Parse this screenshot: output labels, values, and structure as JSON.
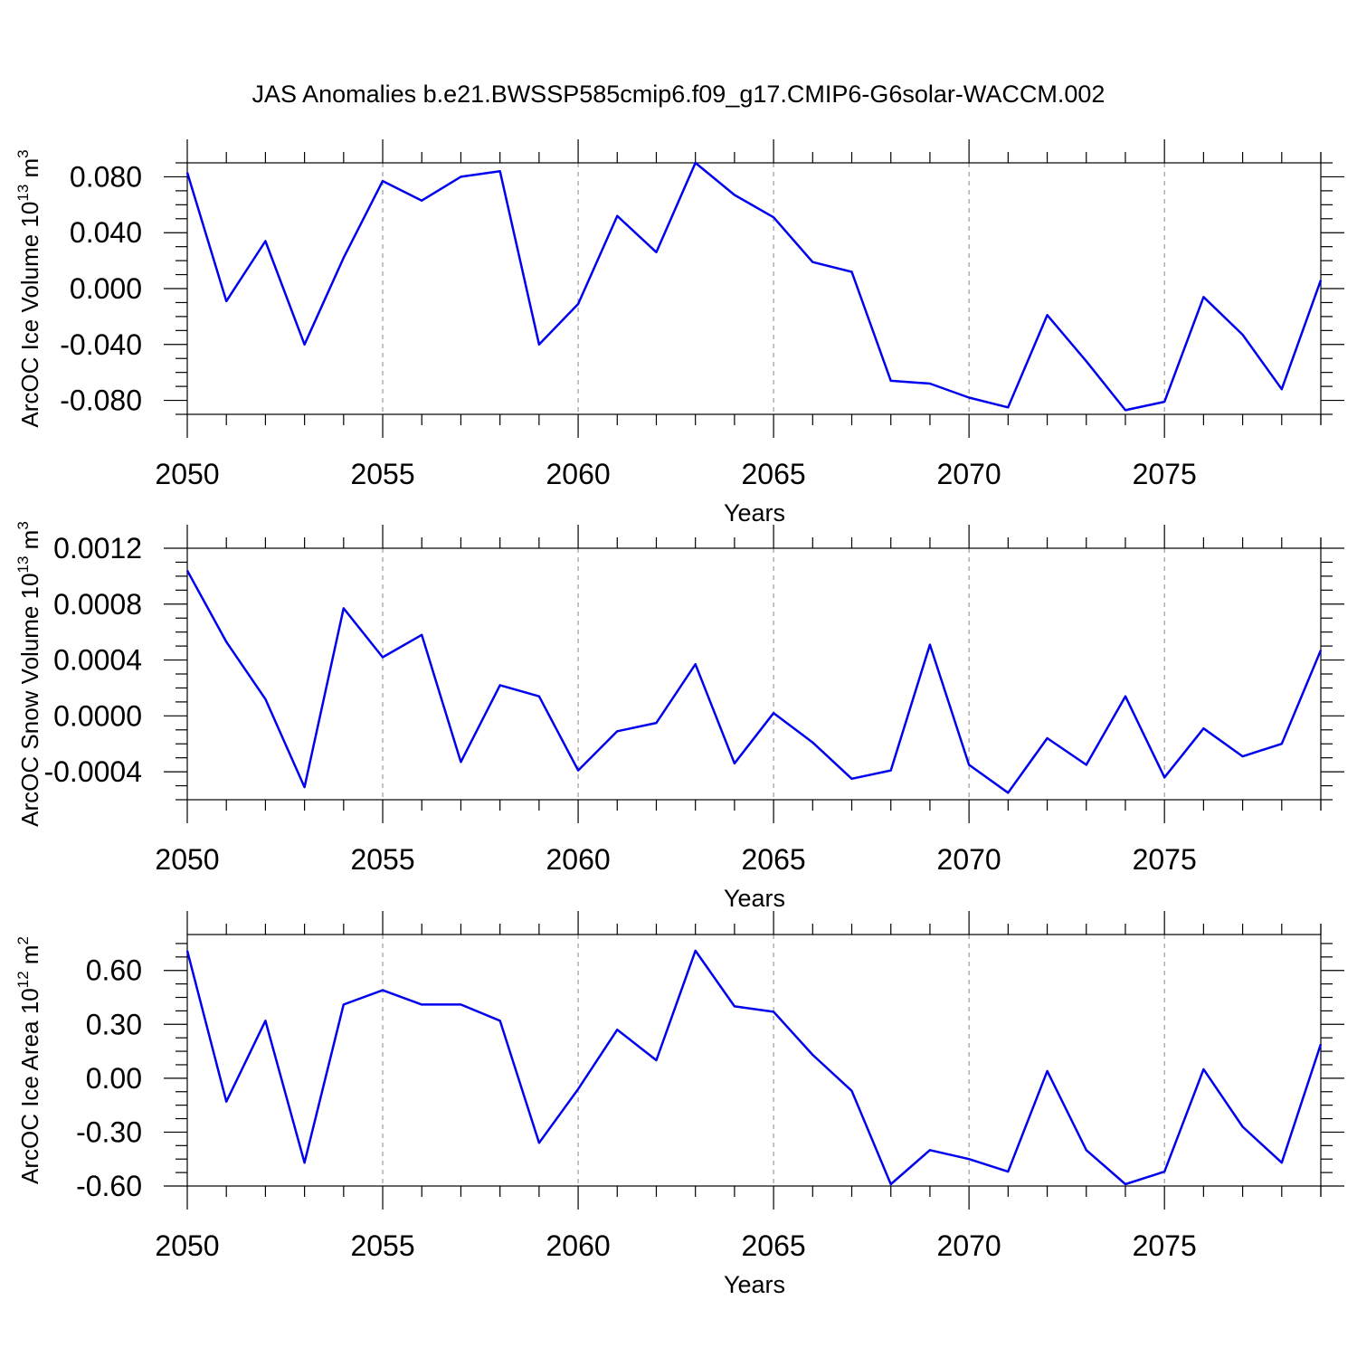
{
  "title": "JAS Anomalies b.e21.BWSSP585cmip6.f09_g17.CMIP6-G6solar-WACCM.002",
  "line_color": "#0000ee",
  "chart_data": [
    {
      "type": "line",
      "xlabel": "Years",
      "ylabel": {
        "main": "ArcOC Ice Volume 10",
        "sup": "13",
        "unit": " m",
        "unit_sup": "3"
      },
      "xlim": [
        2050,
        2079
      ],
      "ylim": [
        -0.09,
        0.09
      ],
      "xticks": [
        2050,
        2055,
        2060,
        2065,
        2070,
        2075
      ],
      "xtick_labels": [
        "2050",
        "2055",
        "2060",
        "2065",
        "2070",
        "2075"
      ],
      "yticks": [
        -0.08,
        -0.04,
        0.0,
        0.04,
        0.08
      ],
      "ytick_labels": [
        "-0.080",
        "-0.040",
        "0.000",
        "0.040",
        "0.080"
      ],
      "grid": "vertical dashed at major x ticks",
      "x": [
        2050,
        2051,
        2052,
        2053,
        2054,
        2055,
        2056,
        2057,
        2058,
        2059,
        2060,
        2061,
        2062,
        2063,
        2064,
        2065,
        2066,
        2067,
        2068,
        2069,
        2070,
        2071,
        2072,
        2073,
        2074,
        2075,
        2076,
        2077,
        2078,
        2079
      ],
      "values": [
        0.083,
        -0.009,
        0.034,
        -0.04,
        0.022,
        0.077,
        0.063,
        0.08,
        0.084,
        -0.04,
        -0.011,
        0.052,
        0.026,
        0.09,
        0.067,
        0.051,
        0.019,
        0.012,
        -0.066,
        -0.068,
        -0.078,
        -0.085,
        -0.019,
        -0.052,
        -0.087,
        -0.081,
        -0.006,
        -0.033,
        -0.072,
        0.006
      ]
    },
    {
      "type": "line",
      "xlabel": "Years",
      "ylabel": {
        "main": "ArcOC Snow Volume 10",
        "sup": "13",
        "unit": " m",
        "unit_sup": "3"
      },
      "xlim": [
        2050,
        2079
      ],
      "ylim": [
        -0.0006,
        0.0012
      ],
      "xticks": [
        2050,
        2055,
        2060,
        2065,
        2070,
        2075
      ],
      "xtick_labels": [
        "2050",
        "2055",
        "2060",
        "2065",
        "2070",
        "2075"
      ],
      "yticks": [
        -0.0004,
        0.0,
        0.0004,
        0.0008,
        0.0012
      ],
      "ytick_labels": [
        "-0.0004",
        "0.0000",
        "0.0004",
        "0.0008",
        "0.0012"
      ],
      "grid": "vertical dashed at major x ticks",
      "x": [
        2050,
        2051,
        2052,
        2053,
        2054,
        2055,
        2056,
        2057,
        2058,
        2059,
        2060,
        2061,
        2062,
        2063,
        2064,
        2065,
        2066,
        2067,
        2068,
        2069,
        2070,
        2071,
        2072,
        2073,
        2074,
        2075,
        2076,
        2077,
        2078,
        2079
      ],
      "values": [
        0.00104,
        0.00053,
        0.00012,
        -0.00051,
        0.00077,
        0.00042,
        0.00058,
        -0.00033,
        0.00022,
        0.00014,
        -0.00039,
        -0.00011,
        -5e-05,
        0.00037,
        -0.00034,
        2e-05,
        -0.00019,
        -0.00045,
        -0.00039,
        0.00051,
        -0.00035,
        -0.00055,
        -0.00016,
        -0.00035,
        0.00014,
        -0.00044,
        -9e-05,
        -0.00029,
        -0.0002,
        0.00047
      ]
    },
    {
      "type": "line",
      "xlabel": "Years",
      "ylabel": {
        "main": "ArcOC Ice Area 10",
        "sup": "12",
        "unit": " m",
        "unit_sup": "2"
      },
      "xlim": [
        2050,
        2079
      ],
      "ylim": [
        -0.6,
        0.8
      ],
      "xticks": [
        2050,
        2055,
        2060,
        2065,
        2070,
        2075
      ],
      "xtick_labels": [
        "2050",
        "2055",
        "2060",
        "2065",
        "2070",
        "2075"
      ],
      "yticks": [
        -0.6,
        -0.3,
        0.0,
        0.3,
        0.6
      ],
      "ytick_labels": [
        "-0.60",
        "-0.30",
        "0.00",
        "0.30",
        "0.60"
      ],
      "grid": "vertical dashed at major x ticks",
      "x": [
        2050,
        2051,
        2052,
        2053,
        2054,
        2055,
        2056,
        2057,
        2058,
        2059,
        2060,
        2061,
        2062,
        2063,
        2064,
        2065,
        2066,
        2067,
        2068,
        2069,
        2070,
        2071,
        2072,
        2073,
        2074,
        2075,
        2076,
        2077,
        2078,
        2079
      ],
      "values": [
        0.71,
        -0.13,
        0.32,
        -0.47,
        0.41,
        0.49,
        0.41,
        0.41,
        0.32,
        -0.36,
        -0.06,
        0.27,
        0.1,
        0.71,
        0.4,
        0.37,
        0.13,
        -0.07,
        -0.59,
        -0.4,
        -0.45,
        -0.52,
        0.04,
        -0.4,
        -0.59,
        -0.52,
        0.05,
        -0.27,
        -0.47,
        0.19
      ]
    }
  ]
}
